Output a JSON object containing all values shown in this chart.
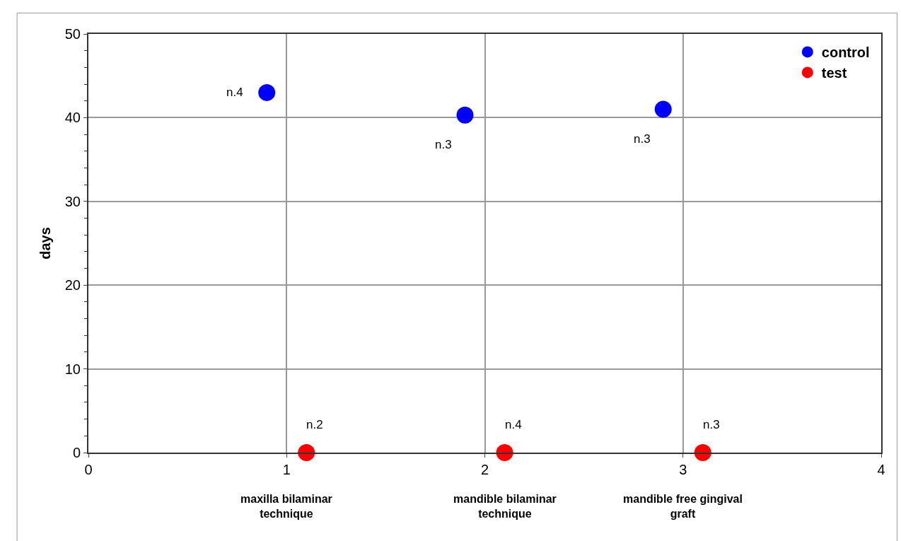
{
  "chart_data": {
    "type": "scatter",
    "ylabel": "days",
    "series": [
      {
        "name": "control",
        "color": "#0000ff",
        "x": [
          0.9,
          1.9,
          2.9
        ],
        "values": [
          43,
          40.3,
          41
        ]
      },
      {
        "name": "test",
        "color": "#ff0000",
        "x": [
          1.1,
          2.1,
          3.1
        ],
        "values": [
          0,
          0,
          0
        ]
      }
    ],
    "xlim": [
      0,
      4
    ],
    "xticks": [
      0,
      1,
      2,
      3,
      4
    ],
    "ylim": [
      0,
      50
    ],
    "yticks": [
      0,
      10,
      20,
      30,
      40,
      50
    ],
    "annotations": [
      {
        "text": "n.4",
        "x": 0.9,
        "y": 43
      },
      {
        "text": "n.3",
        "x": 1.9,
        "y": 40.3
      },
      {
        "text": "n.3",
        "x": 2.9,
        "y": 41
      },
      {
        "text": "n.2",
        "x": 1.1,
        "y": 0
      },
      {
        "text": "n.4",
        "x": 2.1,
        "y": 0
      },
      {
        "text": "n.3",
        "x": 3.1,
        "y": 0
      },
      "maxilla bilaminar technique",
      "mandible bilaminar technique",
      "mandible free gingival graft"
    ],
    "grid": true,
    "legend": "top right",
    "marker": "circle"
  }
}
